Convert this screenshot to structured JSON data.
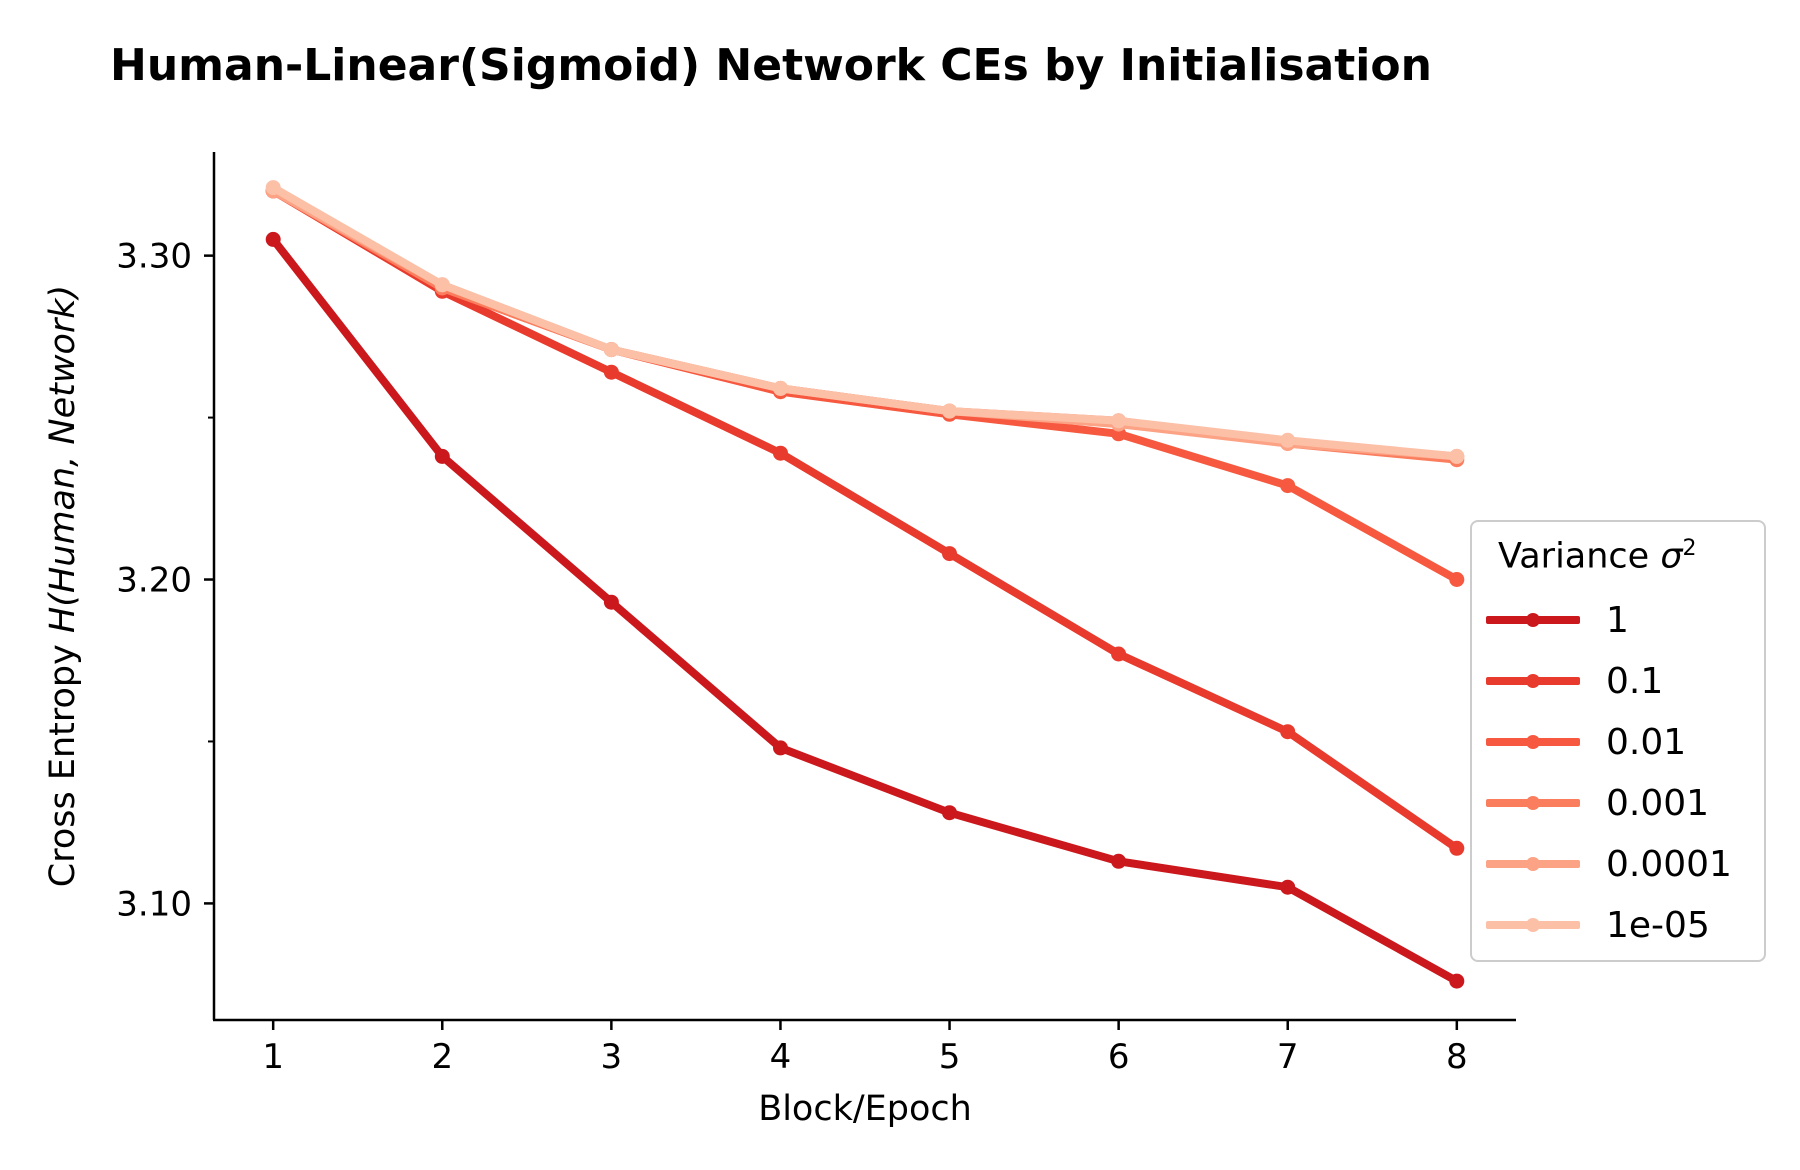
{
  "chart_data": {
    "type": "line",
    "title": "Human-Linear(Sigmoid) Network CEs by Initialisation",
    "xlabel": "Block/Epoch",
    "ylabel_prefix": "Cross Entropy ",
    "ylabel_math": "H(Human, Network)",
    "x": [
      1,
      2,
      3,
      4,
      5,
      6,
      7,
      8
    ],
    "x_tick_labels": [
      "1",
      "2",
      "3",
      "4",
      "5",
      "6",
      "7",
      "8"
    ],
    "y_ticks": [
      3.1,
      3.2,
      3.3
    ],
    "y_tick_labels": [
      "3.10",
      "3.20",
      "3.30"
    ],
    "y_minor_ticks": [
      3.15,
      3.25
    ],
    "xlim": [
      0.65,
      8.35
    ],
    "ylim": [
      3.064,
      3.332
    ],
    "grid": false,
    "legend_title_prefix": "Variance ",
    "legend_title_symbol": "σ",
    "legend_title_superscript": "2",
    "legend_position": "center-right",
    "series": [
      {
        "name": "1",
        "color": "#cb181d",
        "values": [
          3.305,
          3.238,
          3.193,
          3.148,
          3.128,
          3.113,
          3.105,
          3.076
        ]
      },
      {
        "name": "0.1",
        "color": "#e83a2d",
        "values": [
          3.32,
          3.289,
          3.264,
          3.239,
          3.208,
          3.177,
          3.153,
          3.117
        ]
      },
      {
        "name": "0.01",
        "color": "#f6593f",
        "values": [
          3.32,
          3.29,
          3.271,
          3.258,
          3.251,
          3.245,
          3.229,
          3.2
        ]
      },
      {
        "name": "0.001",
        "color": "#fa7d5e",
        "values": [
          3.32,
          3.29,
          3.271,
          3.259,
          3.252,
          3.249,
          3.242,
          3.237
        ]
      },
      {
        "name": "0.0001",
        "color": "#fca285",
        "values": [
          3.32,
          3.291,
          3.271,
          3.259,
          3.252,
          3.248,
          3.242,
          3.238
        ]
      },
      {
        "name": "1e-05",
        "color": "#fcc0a7",
        "values": [
          3.321,
          3.291,
          3.271,
          3.259,
          3.252,
          3.249,
          3.243,
          3.238
        ]
      }
    ]
  }
}
